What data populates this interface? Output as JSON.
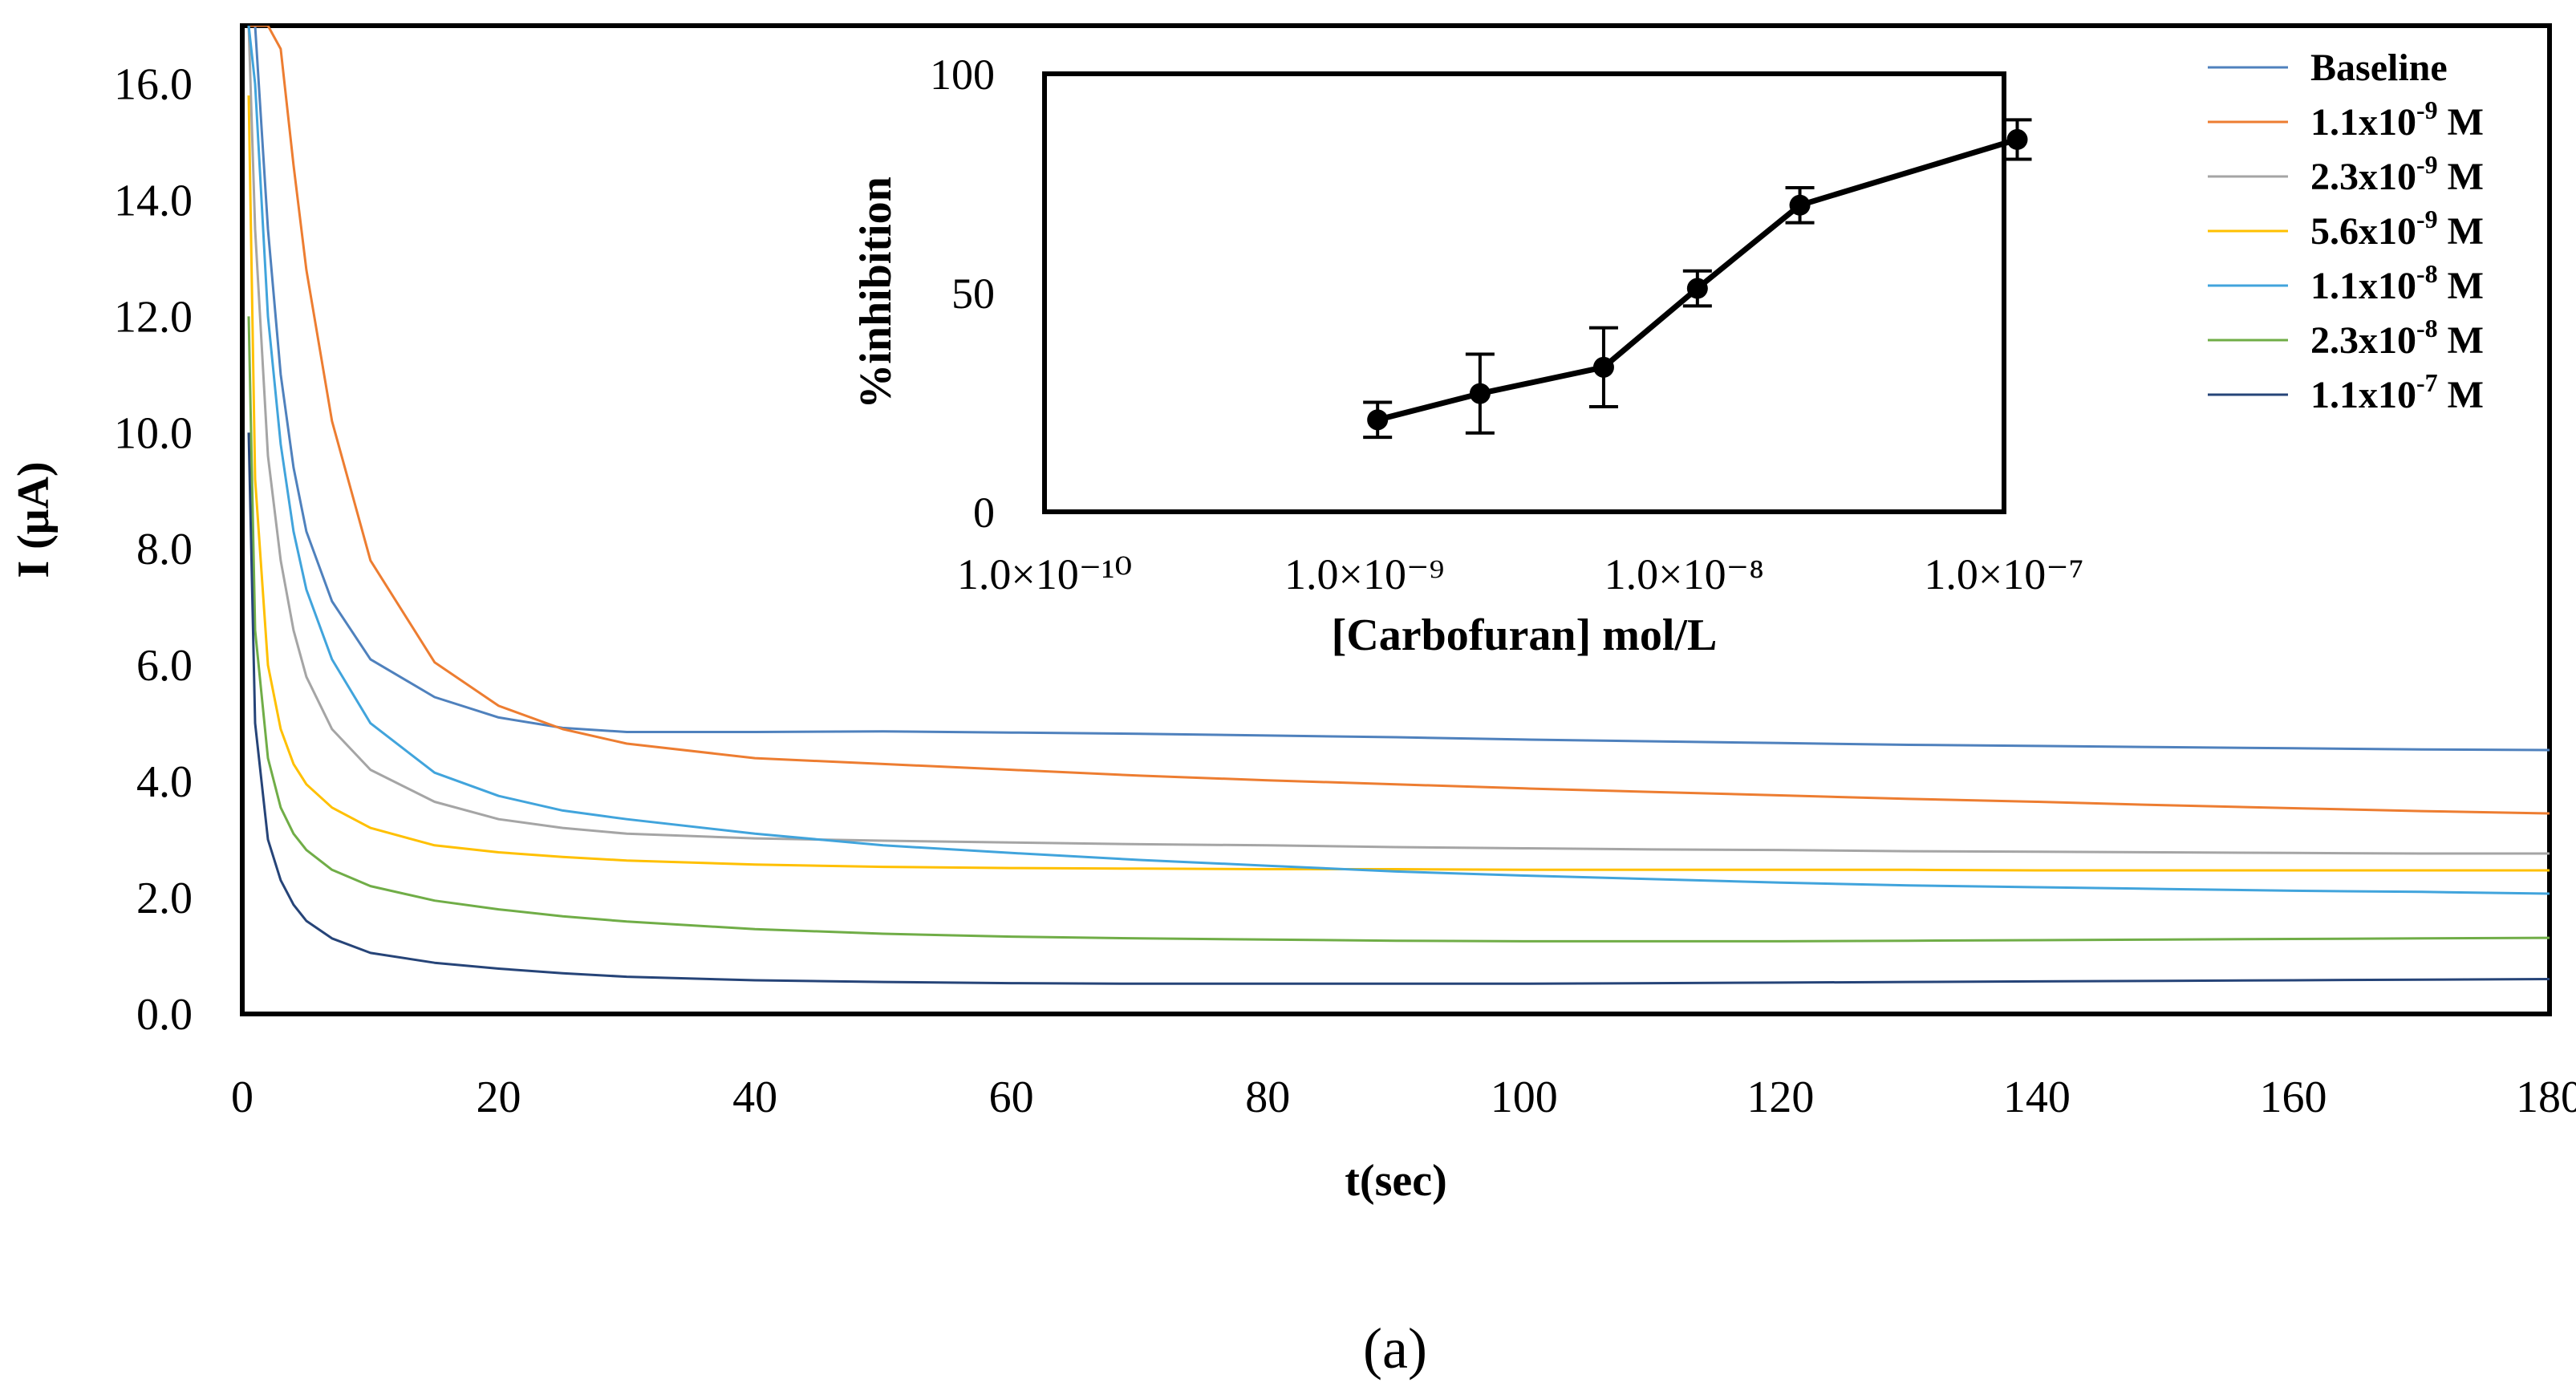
{
  "chart_data": [
    {
      "type": "line",
      "title": "",
      "xlabel": "t(sec)",
      "ylabel": "I (μA)",
      "xlim": [
        0,
        180
      ],
      "ylim": [
        0,
        17
      ],
      "x_ticks": [
        0,
        20,
        40,
        60,
        80,
        100,
        120,
        140,
        160,
        180
      ],
      "x_tick_labels": [
        "0",
        "20",
        "40",
        "60",
        "80",
        "100",
        "120",
        "140",
        "160",
        "180"
      ],
      "y_ticks": [
        0,
        2,
        4,
        6,
        8,
        10,
        12,
        14,
        16
      ],
      "y_tick_labels": [
        "0.0",
        "2.0",
        "4.0",
        "6.0",
        "8.0",
        "10.0",
        "12.0",
        "14.0",
        "16.0"
      ],
      "x": [
        0.5,
        1,
        2,
        3,
        4,
        5,
        7,
        10,
        15,
        20,
        25,
        30,
        40,
        50,
        60,
        70,
        80,
        90,
        100,
        110,
        120,
        130,
        140,
        150,
        160,
        170,
        180
      ],
      "series": [
        {
          "name": "Baseline",
          "legend": {
            "base": "Baseline",
            "sup": "",
            "tail": ""
          },
          "color": "#4f81bd",
          "values": [
            17.0,
            17.0,
            13.5,
            11.0,
            9.4,
            8.3,
            7.1,
            6.1,
            5.45,
            5.1,
            4.92,
            4.85,
            4.85,
            4.86,
            4.84,
            4.82,
            4.79,
            4.76,
            4.72,
            4.69,
            4.66,
            4.63,
            4.61,
            4.59,
            4.57,
            4.55,
            4.54
          ]
        },
        {
          "name": "1.1x10-9 M",
          "legend": {
            "base": "1.1x10",
            "sup": "-9",
            "tail": " M"
          },
          "color": "#ed7d31",
          "values": [
            17.0,
            17.0,
            17.0,
            16.6,
            14.6,
            12.8,
            10.2,
            7.8,
            6.05,
            5.3,
            4.9,
            4.65,
            4.4,
            4.3,
            4.2,
            4.1,
            4.02,
            3.95,
            3.88,
            3.82,
            3.76,
            3.7,
            3.65,
            3.59,
            3.54,
            3.49,
            3.45
          ]
        },
        {
          "name": "2.3x10-9 M",
          "legend": {
            "base": "2.3x10",
            "sup": "-9",
            "tail": " M"
          },
          "color": "#a5a5a5",
          "values": [
            17.0,
            13.5,
            9.6,
            7.8,
            6.6,
            5.8,
            4.9,
            4.2,
            3.65,
            3.35,
            3.2,
            3.1,
            3.02,
            2.98,
            2.95,
            2.92,
            2.9,
            2.87,
            2.85,
            2.83,
            2.82,
            2.8,
            2.79,
            2.78,
            2.77,
            2.76,
            2.76
          ]
        },
        {
          "name": "5.6x10-9 M",
          "legend": {
            "base": "5.6x10",
            "sup": "-9",
            "tail": " M"
          },
          "color": "#ffc000",
          "values": [
            15.8,
            9.2,
            6.0,
            4.9,
            4.3,
            3.95,
            3.55,
            3.2,
            2.9,
            2.78,
            2.7,
            2.64,
            2.57,
            2.53,
            2.51,
            2.5,
            2.49,
            2.49,
            2.48,
            2.48,
            2.48,
            2.48,
            2.47,
            2.47,
            2.47,
            2.47,
            2.47
          ]
        },
        {
          "name": "1.1x10-8 M",
          "legend": {
            "base": "1.1x10",
            "sup": "-8",
            "tail": " M"
          },
          "color": "#41a4dc",
          "values": [
            17.0,
            16.0,
            12.0,
            9.8,
            8.3,
            7.3,
            6.1,
            5.0,
            4.15,
            3.75,
            3.5,
            3.35,
            3.1,
            2.9,
            2.77,
            2.65,
            2.55,
            2.45,
            2.38,
            2.32,
            2.26,
            2.21,
            2.18,
            2.15,
            2.12,
            2.1,
            2.07
          ]
        },
        {
          "name": "2.3x10-8 M",
          "legend": {
            "base": "2.3x10",
            "sup": "-8",
            "tail": " M"
          },
          "color": "#70ad47",
          "values": [
            12.0,
            6.6,
            4.4,
            3.55,
            3.1,
            2.82,
            2.48,
            2.2,
            1.95,
            1.8,
            1.68,
            1.59,
            1.46,
            1.38,
            1.33,
            1.3,
            1.28,
            1.26,
            1.25,
            1.25,
            1.25,
            1.26,
            1.27,
            1.28,
            1.29,
            1.3,
            1.31
          ]
        },
        {
          "name": "1.1x10-7 M",
          "legend": {
            "base": "1.1x10",
            "sup": "-7",
            "tail": " M"
          },
          "color": "#264478",
          "values": [
            10.0,
            5.0,
            3.0,
            2.3,
            1.88,
            1.6,
            1.3,
            1.05,
            0.88,
            0.78,
            0.7,
            0.64,
            0.58,
            0.55,
            0.53,
            0.52,
            0.52,
            0.52,
            0.52,
            0.53,
            0.54,
            0.55,
            0.56,
            0.57,
            0.58,
            0.59,
            0.6
          ]
        }
      ],
      "legend_position": "top-right"
    },
    {
      "type": "line",
      "title": "",
      "xlabel": "[Carbofuran] mol/L",
      "ylabel": "%inhibition",
      "x_scale": "log",
      "xlim": [
        1e-10,
        1e-07
      ],
      "ylim": [
        0,
        100
      ],
      "x_ticks": [
        1e-10,
        1e-09,
        1e-08,
        1e-07
      ],
      "x_tick_labels": [
        "1.0×10⁻¹⁰",
        "1.0×10⁻⁹",
        "1.0×10⁻⁸",
        "1.0×10⁻⁷"
      ],
      "y_ticks": [
        0,
        50,
        100
      ],
      "y_tick_labels": [
        "0",
        "50",
        "100"
      ],
      "x": [
        1.1e-09,
        2.3e-09,
        5.6e-09,
        1.1e-08,
        2.3e-08,
        1.1e-07
      ],
      "series": [
        {
          "name": "%inhibition",
          "color": "#000000",
          "values": [
            21,
            27,
            33,
            51,
            70,
            85
          ],
          "error": [
            4,
            9,
            9,
            4,
            4,
            4.5
          ]
        }
      ]
    }
  ],
  "caption": "(a)"
}
